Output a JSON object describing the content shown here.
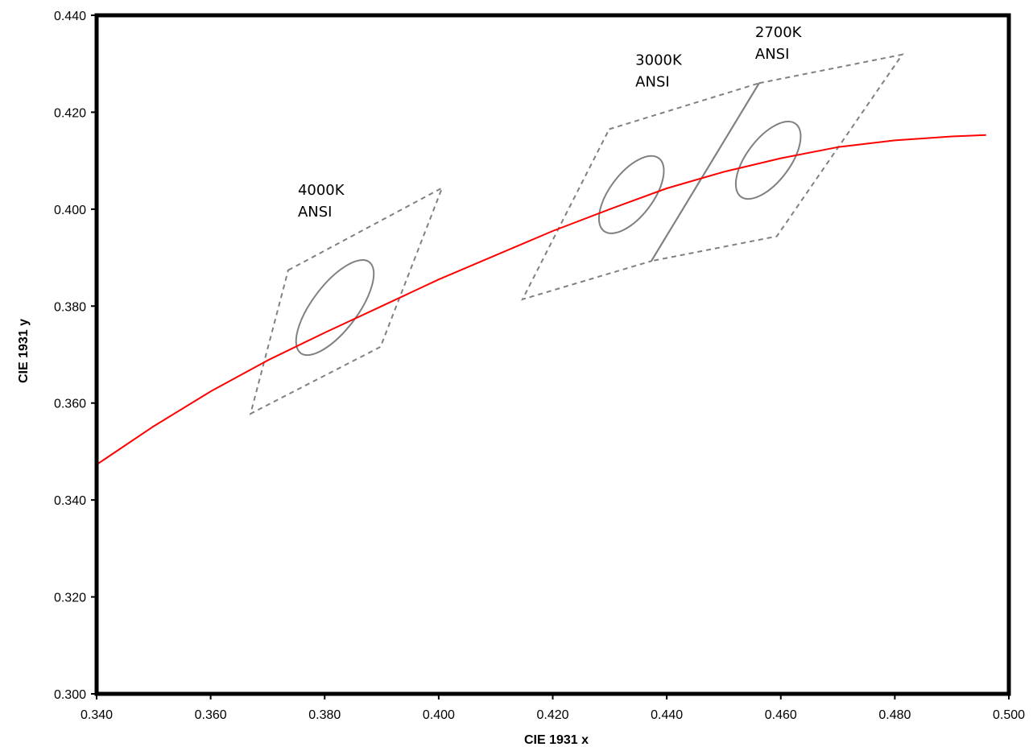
{
  "chart_data": {
    "type": "line",
    "title": "",
    "xlabel": "CIE 1931 x",
    "ylabel": "CIE 1931 y",
    "xlim": [
      0.34,
      0.5
    ],
    "ylim": [
      0.3,
      0.44
    ],
    "x_ticks": [
      "0.340",
      "0.360",
      "0.380",
      "0.400",
      "0.420",
      "0.440",
      "0.460",
      "0.480",
      "0.500"
    ],
    "y_ticks": [
      "0.300",
      "0.320",
      "0.340",
      "0.360",
      "0.380",
      "0.400",
      "0.420",
      "0.440"
    ],
    "grid": false,
    "colors": {
      "locus": "#ff0000",
      "boundary": "#808080",
      "frame": "#000000"
    },
    "series": [
      {
        "kind": "planckian-locus",
        "x": [
          0.34,
          0.35,
          0.36,
          0.37,
          0.38,
          0.39,
          0.4,
          0.41,
          0.42,
          0.43,
          0.44,
          0.45,
          0.46,
          0.47,
          0.48,
          0.49,
          0.496
        ],
        "y": [
          0.3473,
          0.3552,
          0.3624,
          0.3688,
          0.3745,
          0.38,
          0.3855,
          0.3905,
          0.3955,
          0.4,
          0.4043,
          0.4077,
          0.4105,
          0.4128,
          0.4142,
          0.415,
          0.4153
        ]
      }
    ],
    "quadrangles": [
      {
        "name": "4000K",
        "x": [
          0.3736,
          0.4006,
          0.3898,
          0.367
        ],
        "y": [
          0.3874,
          0.4044,
          0.3716,
          0.3578
        ]
      },
      {
        "name": "3000K",
        "x": [
          0.4299,
          0.4562,
          0.4373,
          0.4147
        ],
        "y": [
          0.4165,
          0.426,
          0.3893,
          0.3814
        ]
      },
      {
        "name": "2700K",
        "x": [
          0.4562,
          0.4813,
          0.4593,
          0.4373
        ],
        "y": [
          0.426,
          0.4319,
          0.3944,
          0.3893
        ]
      }
    ],
    "ellipses": [
      {
        "name": "4000K",
        "cx": 0.3818,
        "cy": 0.3797,
        "rx": 0.01,
        "ry": 0.004,
        "angle_deg": 53
      },
      {
        "name": "3000K",
        "cx": 0.4338,
        "cy": 0.403,
        "rx": 0.008,
        "ry": 0.0038,
        "angle_deg": 53
      },
      {
        "name": "2700K",
        "cx": 0.4578,
        "cy": 0.4101,
        "rx": 0.008,
        "ry": 0.0038,
        "angle_deg": 53
      }
    ],
    "annotations": [
      {
        "line1": "4000K",
        "line2": "ANSI",
        "x": 0.3753,
        "y": 0.403
      },
      {
        "line1": "3000K",
        "line2": "ANSI",
        "x": 0.4345,
        "y": 0.4298
      },
      {
        "line1": "2700K",
        "line2": "ANSI",
        "x": 0.4555,
        "y": 0.4355
      }
    ]
  }
}
